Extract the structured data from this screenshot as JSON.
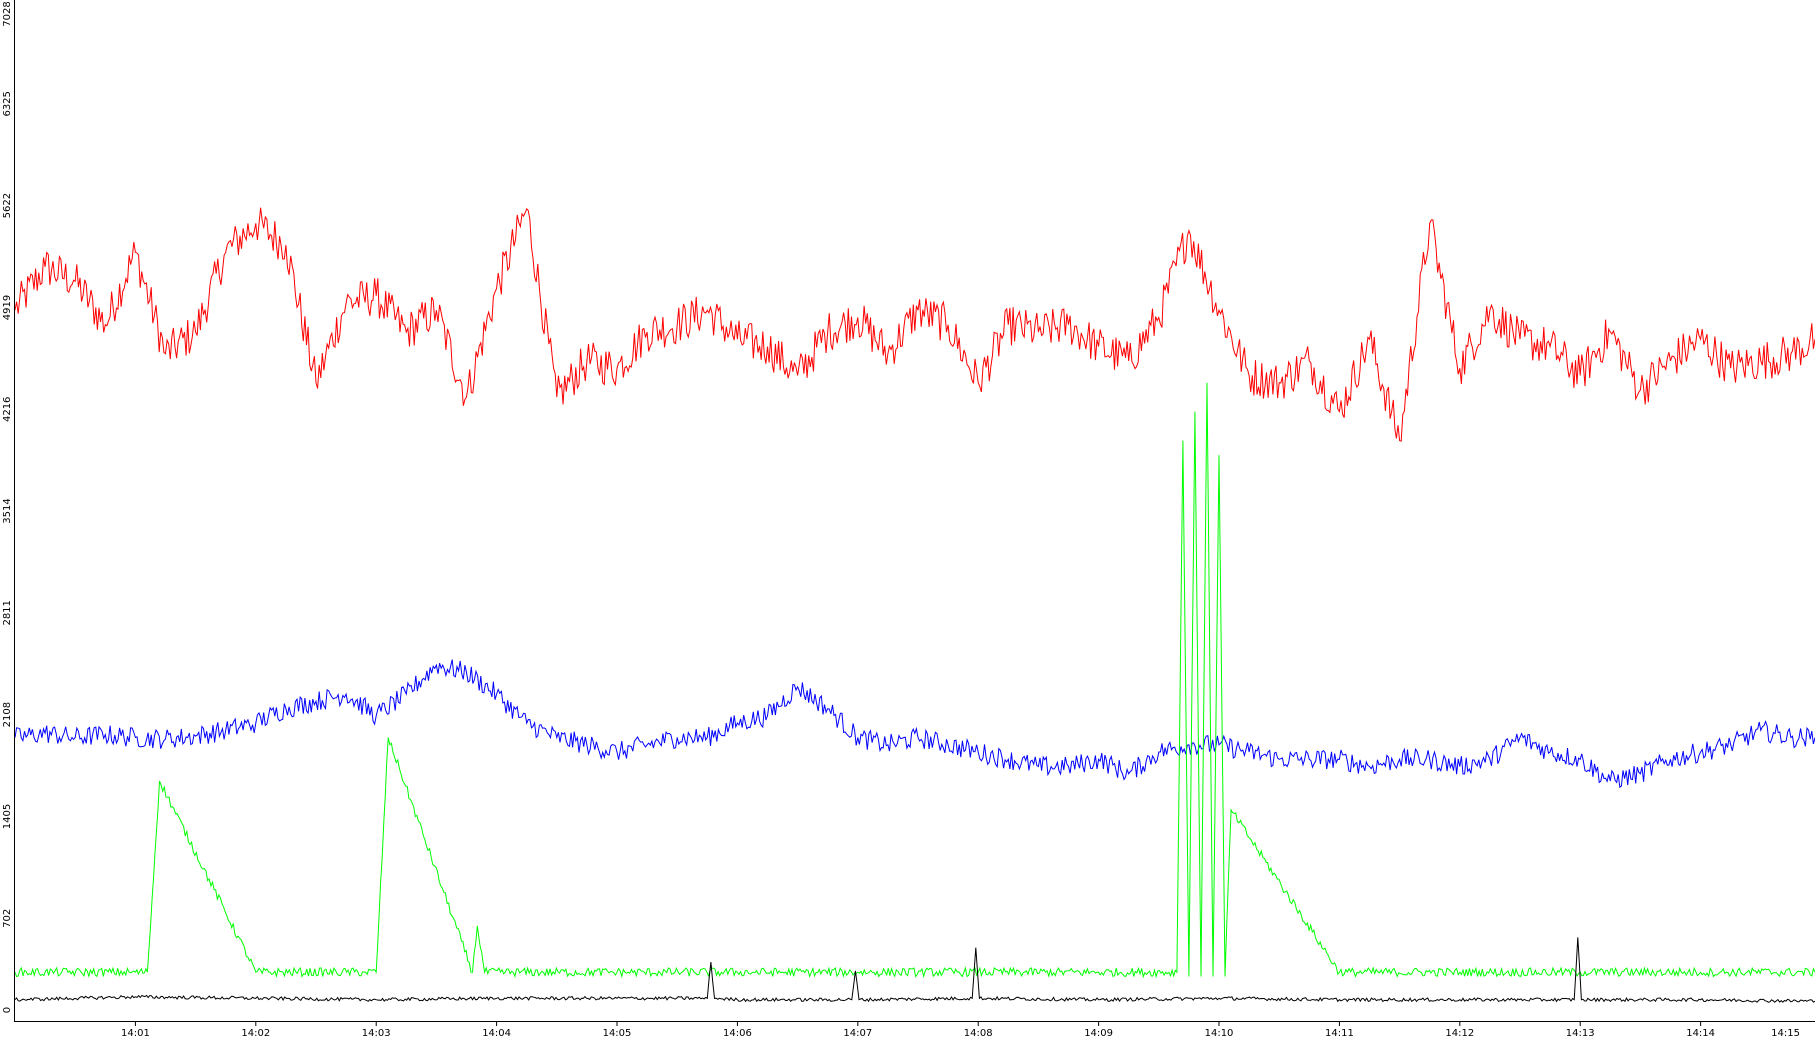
{
  "chart_data": {
    "type": "line",
    "title": "",
    "xlabel": "",
    "ylabel": "",
    "x_ticks": [
      "14:01",
      "14:02",
      "14:03",
      "14:04",
      "14:05",
      "14:06",
      "14:07",
      "14:08",
      "14:09",
      "14:10",
      "14:11",
      "14:12",
      "14:13",
      "14:14",
      "14:15"
    ],
    "x_tick_minutes": [
      1,
      2,
      3,
      4,
      5,
      6,
      7,
      8,
      9,
      10,
      11,
      12,
      13,
      14,
      15
    ],
    "x_range_minutes": [
      0.0,
      14.95
    ],
    "y_ticks": [
      "0",
      "702",
      "1405",
      "2108",
      "2811",
      "3514",
      "4216",
      "4919",
      "5622",
      "6325",
      "7028"
    ],
    "y_tick_values": [
      0,
      702,
      1405,
      2108,
      2811,
      3514,
      4216,
      4919,
      5622,
      6325,
      7028
    ],
    "ylim": [
      0,
      7028
    ],
    "grid": false,
    "legend": "none",
    "series": [
      {
        "color": "#ff0000",
        "x": [
          0.0,
          0.25,
          0.5,
          0.75,
          1.0,
          1.25,
          1.5,
          1.75,
          2.0,
          2.25,
          2.5,
          2.75,
          3.0,
          3.25,
          3.5,
          3.75,
          4.0,
          4.25,
          4.5,
          4.75,
          5.0,
          5.25,
          5.5,
          5.75,
          6.0,
          6.25,
          6.5,
          6.75,
          7.0,
          7.25,
          7.5,
          7.75,
          8.0,
          8.25,
          8.5,
          8.75,
          9.0,
          9.25,
          9.5,
          9.75,
          10.0,
          10.25,
          10.5,
          10.75,
          11.0,
          11.25,
          11.5,
          11.75,
          12.0,
          12.25,
          12.5,
          12.75,
          13.0,
          13.25,
          13.5,
          13.75,
          14.0,
          14.25,
          14.5,
          14.75,
          14.95
        ],
        "y": [
          4900,
          5200,
          5100,
          4800,
          5300,
          4600,
          4750,
          5300,
          5500,
          5350,
          4400,
          4950,
          5000,
          4750,
          4900,
          4300,
          5050,
          5600,
          4300,
          4550,
          4500,
          4750,
          4800,
          4900,
          4700,
          4650,
          4450,
          4750,
          4850,
          4600,
          4900,
          4800,
          4400,
          4800,
          4750,
          4800,
          4650,
          4550,
          4850,
          5450,
          4900,
          4450,
          4400,
          4550,
          4200,
          4700,
          4000,
          5500,
          4500,
          4900,
          4700,
          4650,
          4450,
          4750,
          4350,
          4550,
          4700,
          4500,
          4550,
          4600,
          4700
        ]
      },
      {
        "color": "#0000ff",
        "x": [
          0.0,
          0.25,
          0.5,
          0.75,
          1.0,
          1.25,
          1.5,
          1.75,
          2.0,
          2.25,
          2.5,
          2.75,
          3.0,
          3.25,
          3.5,
          3.75,
          4.0,
          4.25,
          4.5,
          4.75,
          5.0,
          5.25,
          5.5,
          5.75,
          6.0,
          6.25,
          6.5,
          6.75,
          7.0,
          7.25,
          7.5,
          7.75,
          8.0,
          8.25,
          8.5,
          8.75,
          9.0,
          9.25,
          9.5,
          9.75,
          10.0,
          10.25,
          10.5,
          10.75,
          11.0,
          11.25,
          11.5,
          11.75,
          12.0,
          12.25,
          12.5,
          12.75,
          13.0,
          13.25,
          13.5,
          13.75,
          14.0,
          14.25,
          14.5,
          14.75,
          14.95
        ],
        "y": [
          1950,
          1980,
          1950,
          1970,
          1950,
          1940,
          1960,
          2000,
          2050,
          2150,
          2200,
          2250,
          2100,
          2250,
          2450,
          2400,
          2250,
          2050,
          1950,
          1900,
          1850,
          1900,
          1950,
          1950,
          2050,
          2100,
          2300,
          2150,
          1950,
          1900,
          1950,
          1900,
          1850,
          1800,
          1750,
          1750,
          1800,
          1700,
          1850,
          1900,
          1900,
          1850,
          1800,
          1800,
          1800,
          1750,
          1800,
          1800,
          1750,
          1800,
          1950,
          1850,
          1800,
          1650,
          1700,
          1800,
          1850,
          1900,
          2000,
          1950,
          1950
        ]
      },
      {
        "color": "#00ff00",
        "x": [
          0.0,
          1.0,
          1.1,
          1.2,
          2.0,
          2.9,
          3.0,
          3.1,
          3.8,
          3.84,
          3.9,
          5.0,
          6.0,
          7.0,
          8.0,
          9.0,
          9.65,
          9.7,
          9.75,
          9.8,
          9.85,
          9.9,
          9.95,
          10.0,
          10.05,
          10.1,
          11.0,
          12.0,
          13.0,
          14.0,
          14.95
        ],
        "y": [
          330,
          330,
          330,
          1650,
          330,
          330,
          330,
          1950,
          330,
          650,
          330,
          330,
          330,
          330,
          330,
          330,
          330,
          4000,
          300,
          4200,
          300,
          4400,
          300,
          3900,
          300,
          1450,
          330,
          330,
          330,
          330,
          330
        ]
      },
      {
        "color": "#000000",
        "x": [
          0.0,
          1.0,
          2.0,
          3.0,
          4.0,
          5.0,
          5.75,
          5.78,
          5.81,
          6.0,
          6.95,
          6.98,
          7.01,
          7.95,
          7.98,
          8.01,
          9.0,
          10.0,
          11.0,
          12.0,
          12.95,
          12.98,
          13.01,
          14.0,
          14.95
        ],
        "y": [
          140,
          160,
          150,
          140,
          150,
          150,
          150,
          400,
          150,
          140,
          140,
          340,
          140,
          150,
          500,
          150,
          140,
          150,
          140,
          140,
          140,
          570,
          140,
          140,
          130
        ]
      }
    ]
  }
}
